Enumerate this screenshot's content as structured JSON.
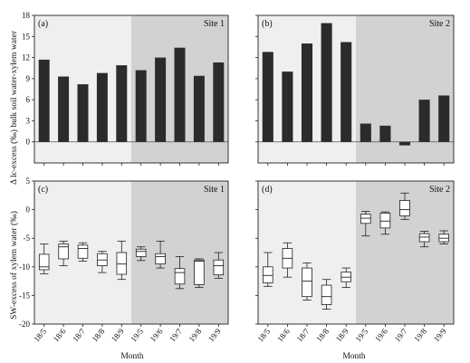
{
  "chart_data": [
    {
      "type": "bar",
      "panel": "(a)",
      "site": "Site 1",
      "ylabel": "Δ lc-excess (‰) bulk soil water-xylem water",
      "ylim": [
        -3,
        18
      ],
      "yticks": [
        0,
        3,
        6,
        9,
        12,
        15,
        18
      ],
      "categories": [
        "18/5",
        "18/6",
        "18/7",
        "18/8",
        "18/9",
        "19/5",
        "19/6",
        "19/7",
        "19/8",
        "19/9"
      ],
      "values": [
        11.7,
        9.3,
        8.2,
        9.8,
        10.9,
        10.2,
        12.0,
        13.4,
        9.4,
        11.3
      ],
      "shaded_from": "19/5"
    },
    {
      "type": "bar",
      "panel": "(b)",
      "site": "Site 2",
      "ylim": [
        -3,
        18
      ],
      "categories": [
        "18/5",
        "18/6",
        "18/7",
        "18/8",
        "18/9",
        "19/5",
        "19/6",
        "19/7",
        "19/8",
        "19/9"
      ],
      "values": [
        12.8,
        10.0,
        14.0,
        16.9,
        14.2,
        2.6,
        2.3,
        -0.5,
        6.0,
        6.6
      ],
      "shaded_from": "19/5"
    },
    {
      "type": "box",
      "panel": "(c)",
      "site": "Site 1",
      "ylabel": "SW-excess of xylem water (‰)",
      "xlabel": "Month",
      "ylim": [
        -20,
        5
      ],
      "yticks": [
        -20,
        -15,
        -10,
        -5,
        0,
        5
      ],
      "categories": [
        "18/5",
        "18/6",
        "18/7",
        "18/8",
        "18/9",
        "19/5",
        "19/6",
        "19/7",
        "19/8",
        "19/9"
      ],
      "boxes": [
        {
          "min": -11.2,
          "q1": -10.5,
          "median": -10.0,
          "q3": -7.8,
          "max": -6.0
        },
        {
          "min": -9.8,
          "q1": -8.6,
          "median": -6.5,
          "q3": -6.0,
          "max": -5.5
        },
        {
          "min": -9.0,
          "q1": -8.5,
          "median": -6.8,
          "q3": -6.2,
          "max": -5.8
        },
        {
          "min": -11.0,
          "q1": -9.8,
          "median": -8.8,
          "q3": -7.7,
          "max": -7.3
        },
        {
          "min": -12.2,
          "q1": -11.3,
          "median": -9.5,
          "q3": -7.5,
          "max": -5.5
        },
        {
          "min": -8.9,
          "q1": -8.2,
          "median": -7.3,
          "q3": -6.9,
          "max": -6.5
        },
        {
          "min": -10.2,
          "q1": -9.5,
          "median": -8.2,
          "q3": -7.7,
          "max": -5.5
        },
        {
          "min": -13.8,
          "q1": -13.0,
          "median": -11.0,
          "q3": -10.3,
          "max": -8.2
        },
        {
          "min": -13.6,
          "q1": -13.1,
          "median": -9.0,
          "q3": -8.8,
          "max": -8.6
        },
        {
          "min": -12.0,
          "q1": -11.4,
          "median": -9.8,
          "q3": -8.8,
          "max": -7.5
        }
      ],
      "shaded_from": "19/5"
    },
    {
      "type": "box",
      "panel": "(d)",
      "site": "Site 2",
      "xlabel": "Month",
      "ylim": [
        -20,
        5
      ],
      "categories": [
        "18/5",
        "18/6",
        "18/7",
        "18/8",
        "18/9",
        "19/5",
        "19/6",
        "19/7",
        "19/8",
        "19/9"
      ],
      "boxes": [
        {
          "min": -13.4,
          "q1": -12.8,
          "median": -11.5,
          "q3": -10.0,
          "max": -7.5
        },
        {
          "min": -11.8,
          "q1": -10.2,
          "median": -8.5,
          "q3": -6.8,
          "max": -5.8
        },
        {
          "min": -15.8,
          "q1": -15.2,
          "median": -12.5,
          "q3": -10.2,
          "max": -9.3
        },
        {
          "min": -17.4,
          "q1": -16.6,
          "median": -15.2,
          "q3": -13.2,
          "max": -12.2
        },
        {
          "min": -13.6,
          "q1": -12.6,
          "median": -11.8,
          "q3": -10.9,
          "max": -10.2
        },
        {
          "min": -4.6,
          "q1": -2.4,
          "median": -1.5,
          "q3": -0.8,
          "max": -0.3
        },
        {
          "min": -4.3,
          "q1": -3.2,
          "median": -2.0,
          "q3": -0.6,
          "max": -0.4
        },
        {
          "min": -1.7,
          "q1": -1.1,
          "median": 0.0,
          "q3": 1.6,
          "max": 2.9
        },
        {
          "min": -6.5,
          "q1": -5.6,
          "median": -4.8,
          "q3": -4.2,
          "max": -3.8
        },
        {
          "min": -6.0,
          "q1": -5.6,
          "median": -5.0,
          "q3": -4.3,
          "max": -3.7
        }
      ],
      "shaded_from": "19/5"
    }
  ],
  "colors": {
    "bar_fill": "#2b2b2b",
    "light_region": "#efefef",
    "dark_region": "#d2d2d2",
    "box_fill": "#ffffff",
    "axis": "#222222"
  }
}
